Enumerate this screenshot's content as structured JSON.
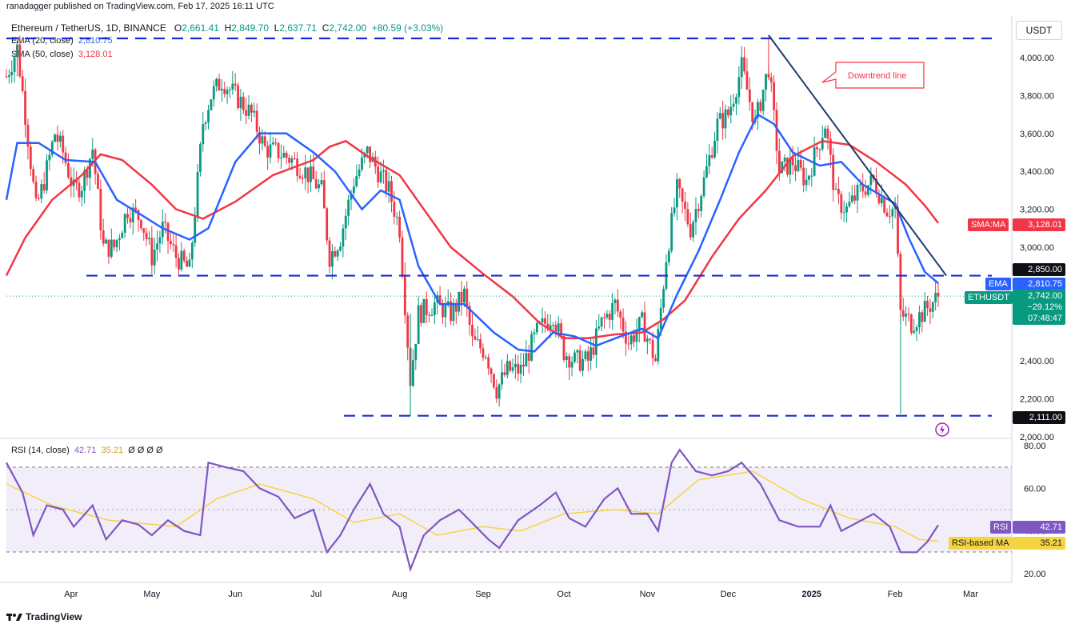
{
  "header": {
    "publisher": "ranadagger published on TradingView.com, Feb 17, 2025 16:11 UTC",
    "symbol": "Ethereum / TetherUS, 1D, BINANCE",
    "o_label": "O",
    "o": "2,661.41",
    "h_label": "H",
    "h": "2,849.70",
    "l_label": "L",
    "l": "2,637.71",
    "c_label": "C",
    "c": "2,742.00",
    "change": "+80.59 (+3.03%)",
    "ema_label": "EMA (20, close)",
    "ema_value": "2,810.75",
    "sma_label": "SMA (50, close)",
    "sma_value": "3,128.01"
  },
  "currency": "USDT",
  "annotation": "Downtrend line",
  "rsi_header": {
    "label": "RSI (14, close)",
    "value": "42.71",
    "ma": "35.21",
    "extra": "Ø Ø Ø Ø"
  },
  "price_labels": {
    "sma_tag": "SMA:MA",
    "sma": "3,128.01",
    "level_high": "2,850.00",
    "ema_tag": "EMA",
    "ema": "2,810.75",
    "sym_tag": "ETHUSDT",
    "last": "2,742.00",
    "pct": "−29.12%",
    "countdown": "07:48:47",
    "level_low": "2,111.00"
  },
  "rsi_labels": {
    "rsi_tag": "RSI",
    "rsi": "42.71",
    "ma_tag": "RSI-based MA",
    "ma": "35.21"
  },
  "footer": {
    "logo": "TradingView"
  },
  "colors": {
    "up": "#089981",
    "down": "#f23645",
    "ema": "#2962ff",
    "sma": "#f23645",
    "rsi": "#7e57c2",
    "rsi_ma": "#f5d442",
    "levels": "#1e2bd6",
    "trend": "#1e3a6e"
  },
  "chart_data": {
    "type": "candlestick",
    "price_axis": {
      "ticks": [
        "4,000.00",
        "3,800.00",
        "3,600.00",
        "3,400.00",
        "3,200.00",
        "3,000.00",
        "2,400.00",
        "2,200.00",
        "2,000.00"
      ],
      "range": [
        1960,
        4100
      ]
    },
    "rsi_axis": {
      "ticks": [
        "80.00",
        "60.00",
        "40.00",
        "20.00"
      ],
      "range": [
        15,
        85
      ],
      "band": [
        30,
        70
      ]
    },
    "x_labels": [
      "Apr",
      "May",
      "Jun",
      "Jul",
      "Aug",
      "Sep",
      "Oct",
      "Nov",
      "Dec",
      "2025",
      "Feb",
      "Mar"
    ],
    "levels": [
      4080,
      2850,
      2111
    ],
    "trendline": [
      {
        "date": "2024-12-16",
        "price": 4100
      },
      {
        "date": "2025-02-20",
        "price": 2850
      }
    ],
    "ohlc_close_path": [
      [
        "2024-03-08",
        3900
      ],
      [
        "2024-03-12",
        4050
      ],
      [
        "2024-03-15",
        3700
      ],
      [
        "2024-03-19",
        3200
      ],
      [
        "2024-03-22",
        3350
      ],
      [
        "2024-03-26",
        3600
      ],
      [
        "2024-03-29",
        3500
      ],
      [
        "2024-04-02",
        3300
      ],
      [
        "2024-04-05",
        3330
      ],
      [
        "2024-04-09",
        3520
      ],
      [
        "2024-04-13",
        3000
      ],
      [
        "2024-04-17",
        3000
      ],
      [
        "2024-04-22",
        3200
      ],
      [
        "2024-04-27",
        3150
      ],
      [
        "2024-05-01",
        2950
      ],
      [
        "2024-05-05",
        3100
      ],
      [
        "2024-05-10",
        2950
      ],
      [
        "2024-05-15",
        2880
      ],
      [
        "2024-05-20",
        3660
      ],
      [
        "2024-05-23",
        3800
      ],
      [
        "2024-05-27",
        3880
      ],
      [
        "2024-06-01",
        3800
      ],
      [
        "2024-06-07",
        3700
      ],
      [
        "2024-06-12",
        3520
      ],
      [
        "2024-06-17",
        3500
      ],
      [
        "2024-06-22",
        3460
      ],
      [
        "2024-06-27",
        3400
      ],
      [
        "2024-07-03",
        3300
      ],
      [
        "2024-07-06",
        2950
      ],
      [
        "2024-07-10",
        3050
      ],
      [
        "2024-07-15",
        3350
      ],
      [
        "2024-07-20",
        3500
      ],
      [
        "2024-07-24",
        3400
      ],
      [
        "2024-07-28",
        3300
      ],
      [
        "2024-08-01",
        3100
      ],
      [
        "2024-08-05",
        2300
      ],
      [
        "2024-08-08",
        2650
      ],
      [
        "2024-08-14",
        2700
      ],
      [
        "2024-08-20",
        2650
      ],
      [
        "2024-08-25",
        2750
      ],
      [
        "2024-08-28",
        2500
      ],
      [
        "2024-09-02",
        2450
      ],
      [
        "2024-09-06",
        2250
      ],
      [
        "2024-09-10",
        2350
      ],
      [
        "2024-09-15",
        2350
      ],
      [
        "2024-09-21",
        2550
      ],
      [
        "2024-09-27",
        2650
      ],
      [
        "2024-10-01",
        2450
      ],
      [
        "2024-10-05",
        2400
      ],
      [
        "2024-10-10",
        2400
      ],
      [
        "2024-10-15",
        2600
      ],
      [
        "2024-10-20",
        2700
      ],
      [
        "2024-10-25",
        2500
      ],
      [
        "2024-10-30",
        2600
      ],
      [
        "2024-11-04",
        2400
      ],
      [
        "2024-11-08",
        2950
      ],
      [
        "2024-11-12",
        3300
      ],
      [
        "2024-11-17",
        3100
      ],
      [
        "2024-11-22",
        3350
      ],
      [
        "2024-11-27",
        3650
      ],
      [
        "2024-12-01",
        3700
      ],
      [
        "2024-12-06",
        3950
      ],
      [
        "2024-12-11",
        3650
      ],
      [
        "2024-12-16",
        3950
      ],
      [
        "2024-12-20",
        3400
      ],
      [
        "2024-12-25",
        3450
      ],
      [
        "2024-12-30",
        3350
      ],
      [
        "2025-01-06",
        3650
      ],
      [
        "2025-01-10",
        3250
      ],
      [
        "2025-01-14",
        3200
      ],
      [
        "2025-01-19",
        3300
      ],
      [
        "2025-01-24",
        3350
      ],
      [
        "2025-01-29",
        3200
      ],
      [
        "2025-02-01",
        3200
      ],
      [
        "2025-02-03",
        2650
      ],
      [
        "2025-02-07",
        2600
      ],
      [
        "2025-02-11",
        2650
      ],
      [
        "2025-02-17",
        2742
      ]
    ],
    "ema_path": [
      [
        "2024-03-08",
        3250
      ],
      [
        "2024-03-12",
        3550
      ],
      [
        "2024-03-20",
        3550
      ],
      [
        "2024-03-30",
        3460
      ],
      [
        "2024-04-10",
        3450
      ],
      [
        "2024-04-18",
        3250
      ],
      [
        "2024-04-26",
        3180
      ],
      [
        "2024-05-05",
        3100
      ],
      [
        "2024-05-15",
        3040
      ],
      [
        "2024-05-22",
        3100
      ],
      [
        "2024-06-01",
        3450
      ],
      [
        "2024-06-10",
        3600
      ],
      [
        "2024-06-20",
        3600
      ],
      [
        "2024-06-30",
        3500
      ],
      [
        "2024-07-08",
        3400
      ],
      [
        "2024-07-18",
        3200
      ],
      [
        "2024-07-25",
        3300
      ],
      [
        "2024-08-01",
        3250
      ],
      [
        "2024-08-08",
        2900
      ],
      [
        "2024-08-16",
        2700
      ],
      [
        "2024-08-25",
        2700
      ],
      [
        "2024-09-05",
        2550
      ],
      [
        "2024-09-14",
        2460
      ],
      [
        "2024-09-20",
        2450
      ],
      [
        "2024-09-27",
        2550
      ],
      [
        "2024-10-05",
        2530
      ],
      [
        "2024-10-13",
        2480
      ],
      [
        "2024-10-22",
        2530
      ],
      [
        "2024-10-30",
        2570
      ],
      [
        "2024-11-05",
        2520
      ],
      [
        "2024-11-12",
        2750
      ],
      [
        "2024-11-20",
        2980
      ],
      [
        "2024-11-28",
        3250
      ],
      [
        "2024-12-05",
        3500
      ],
      [
        "2024-12-12",
        3700
      ],
      [
        "2024-12-18",
        3650
      ],
      [
        "2024-12-25",
        3500
      ],
      [
        "2025-01-04",
        3430
      ],
      [
        "2025-01-12",
        3450
      ],
      [
        "2025-01-20",
        3330
      ],
      [
        "2025-02-01",
        3230
      ],
      [
        "2025-02-06",
        3050
      ],
      [
        "2025-02-12",
        2870
      ],
      [
        "2025-02-17",
        2810
      ]
    ],
    "sma_path": [
      [
        "2024-03-08",
        2850
      ],
      [
        "2024-03-15",
        3050
      ],
      [
        "2024-03-25",
        3250
      ],
      [
        "2024-04-05",
        3380
      ],
      [
        "2024-04-12",
        3490
      ],
      [
        "2024-04-20",
        3460
      ],
      [
        "2024-05-01",
        3330
      ],
      [
        "2024-05-10",
        3200
      ],
      [
        "2024-05-20",
        3150
      ],
      [
        "2024-06-01",
        3240
      ],
      [
        "2024-06-15",
        3380
      ],
      [
        "2024-06-30",
        3460
      ],
      [
        "2024-07-06",
        3530
      ],
      [
        "2024-07-12",
        3560
      ],
      [
        "2024-07-20",
        3480
      ],
      [
        "2024-08-01",
        3380
      ],
      [
        "2024-08-10",
        3200
      ],
      [
        "2024-08-20",
        3000
      ],
      [
        "2024-09-01",
        2860
      ],
      [
        "2024-09-12",
        2740
      ],
      [
        "2024-09-22",
        2600
      ],
      [
        "2024-10-01",
        2520
      ],
      [
        "2024-10-10",
        2520
      ],
      [
        "2024-10-20",
        2540
      ],
      [
        "2024-10-30",
        2550
      ],
      [
        "2024-11-07",
        2620
      ],
      [
        "2024-11-15",
        2720
      ],
      [
        "2024-11-25",
        2950
      ],
      [
        "2024-12-05",
        3150
      ],
      [
        "2024-12-15",
        3300
      ],
      [
        "2024-12-25",
        3480
      ],
      [
        "2025-01-05",
        3560
      ],
      [
        "2025-01-15",
        3540
      ],
      [
        "2025-01-25",
        3450
      ],
      [
        "2025-02-05",
        3330
      ],
      [
        "2025-02-12",
        3220
      ],
      [
        "2025-02-17",
        3128
      ]
    ],
    "rsi_path": [
      [
        "2024-03-08",
        72
      ],
      [
        "2024-03-14",
        58
      ],
      [
        "2024-03-18",
        38
      ],
      [
        "2024-03-23",
        52
      ],
      [
        "2024-03-29",
        50
      ],
      [
        "2024-04-02",
        42
      ],
      [
        "2024-04-09",
        52
      ],
      [
        "2024-04-14",
        36
      ],
      [
        "2024-04-20",
        45
      ],
      [
        "2024-04-26",
        43
      ],
      [
        "2024-05-01",
        38
      ],
      [
        "2024-05-07",
        45
      ],
      [
        "2024-05-13",
        40
      ],
      [
        "2024-05-19",
        38
      ],
      [
        "2024-05-22",
        72
      ],
      [
        "2024-05-28",
        70
      ],
      [
        "2024-06-04",
        68
      ],
      [
        "2024-06-10",
        60
      ],
      [
        "2024-06-17",
        56
      ],
      [
        "2024-06-23",
        46
      ],
      [
        "2024-06-30",
        50
      ],
      [
        "2024-07-05",
        30
      ],
      [
        "2024-07-10",
        38
      ],
      [
        "2024-07-15",
        50
      ],
      [
        "2024-07-21",
        62
      ],
      [
        "2024-07-26",
        48
      ],
      [
        "2024-08-01",
        42
      ],
      [
        "2024-08-05",
        22
      ],
      [
        "2024-08-10",
        38
      ],
      [
        "2024-08-16",
        45
      ],
      [
        "2024-08-23",
        50
      ],
      [
        "2024-08-27",
        45
      ],
      [
        "2024-09-03",
        36
      ],
      [
        "2024-09-07",
        32
      ],
      [
        "2024-09-14",
        45
      ],
      [
        "2024-09-22",
        52
      ],
      [
        "2024-09-28",
        58
      ],
      [
        "2024-10-03",
        46
      ],
      [
        "2024-10-09",
        42
      ],
      [
        "2024-10-16",
        55
      ],
      [
        "2024-10-21",
        60
      ],
      [
        "2024-10-26",
        48
      ],
      [
        "2024-11-01",
        48
      ],
      [
        "2024-11-05",
        40
      ],
      [
        "2024-11-10",
        72
      ],
      [
        "2024-11-13",
        78
      ],
      [
        "2024-11-19",
        68
      ],
      [
        "2024-11-25",
        66
      ],
      [
        "2024-12-01",
        68
      ],
      [
        "2024-12-06",
        72
      ],
      [
        "2024-12-13",
        62
      ],
      [
        "2024-12-20",
        45
      ],
      [
        "2024-12-27",
        42
      ],
      [
        "2025-01-04",
        42
      ],
      [
        "2025-01-08",
        52
      ],
      [
        "2025-01-12",
        40
      ],
      [
        "2025-01-18",
        44
      ],
      [
        "2025-01-24",
        48
      ],
      [
        "2025-01-30",
        42
      ],
      [
        "2025-02-03",
        30
      ],
      [
        "2025-02-09",
        30
      ],
      [
        "2025-02-13",
        35
      ],
      [
        "2025-02-17",
        42.71
      ]
    ],
    "rsi_ma_path": [
      [
        "2024-03-08",
        62
      ],
      [
        "2024-03-25",
        52
      ],
      [
        "2024-04-15",
        45
      ],
      [
        "2024-05-10",
        42
      ],
      [
        "2024-05-25",
        55
      ],
      [
        "2024-06-10",
        62
      ],
      [
        "2024-06-30",
        55
      ],
      [
        "2024-07-15",
        44
      ],
      [
        "2024-08-01",
        48
      ],
      [
        "2024-08-15",
        38
      ],
      [
        "2024-09-01",
        42
      ],
      [
        "2024-09-15",
        40
      ],
      [
        "2024-10-01",
        48
      ],
      [
        "2024-10-20",
        50
      ],
      [
        "2024-11-05",
        48
      ],
      [
        "2024-11-20",
        64
      ],
      [
        "2024-12-10",
        68
      ],
      [
        "2024-12-28",
        55
      ],
      [
        "2025-01-15",
        46
      ],
      [
        "2025-02-01",
        42
      ],
      [
        "2025-02-10",
        36
      ],
      [
        "2025-02-17",
        35.21
      ]
    ]
  }
}
